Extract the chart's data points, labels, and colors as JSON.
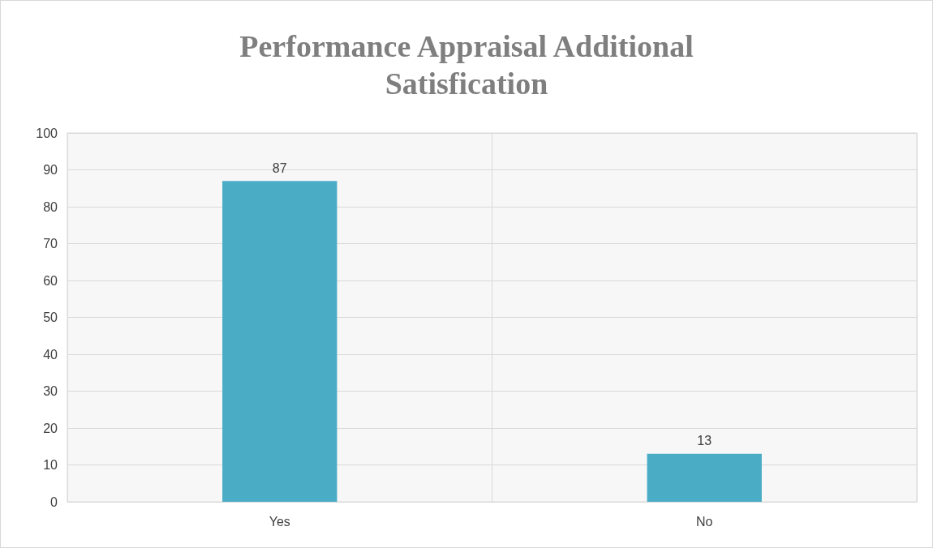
{
  "chart_data": {
    "type": "bar",
    "title": "Performance Appraisal Additional\nSatisfication",
    "categories": [
      "Yes",
      "No"
    ],
    "values": [
      87,
      13
    ],
    "color": "#4bacc6",
    "ylim": [
      0,
      100
    ],
    "yticks": [
      0,
      10,
      20,
      30,
      40,
      50,
      60,
      70,
      80,
      90,
      100
    ],
    "grid": true,
    "data_labels": true
  }
}
